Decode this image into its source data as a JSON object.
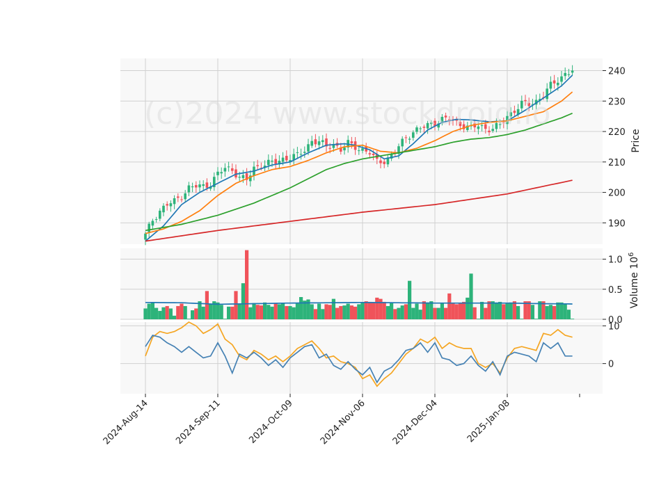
{
  "watermark": "(c)2024 www.stockdroid.io",
  "colors": {
    "up": "#2db37a",
    "down": "#f0535a",
    "ma_short": "#1f77b4",
    "ma_mid": "#ff7f0e",
    "ma_long": "#2ca02c",
    "ma_200": "#d62728",
    "osc_fast": "#4682b4",
    "osc_slow": "#f5a623",
    "grid": "#d0d0d0",
    "panel_bg": "#f8f8f8"
  },
  "chart_data": {
    "type": "candlestick",
    "x_tick_labels": [
      "2024-Aug-14",
      "2024-Sep-11",
      "2024-Oct-09",
      "2024-Nov-06",
      "2024-Dec-04",
      "2025-Jan-08"
    ],
    "x_tick_index": [
      0,
      20,
      40,
      60,
      80,
      100
    ],
    "n_bars": 119,
    "grid": true,
    "price_panel": {
      "ylabel": "Price",
      "yticks": [
        190,
        200,
        210,
        220,
        230,
        240
      ],
      "ylim": [
        183,
        244
      ],
      "close_anchors": [
        [
          0,
          186
        ],
        [
          2,
          191
        ],
        [
          4,
          194
        ],
        [
          6,
          196
        ],
        [
          8,
          197
        ],
        [
          10,
          199
        ],
        [
          12,
          201.5
        ],
        [
          14,
          202
        ],
        [
          16,
          202
        ],
        [
          18,
          203
        ],
        [
          20,
          206
        ],
        [
          22,
          208
        ],
        [
          24,
          207.5
        ],
        [
          26,
          205
        ],
        [
          28,
          204
        ],
        [
          30,
          208
        ],
        [
          32,
          209
        ],
        [
          34,
          209.5
        ],
        [
          36,
          210
        ],
        [
          38,
          211
        ],
        [
          40,
          211.5
        ],
        [
          42,
          212
        ],
        [
          44,
          214
        ],
        [
          46,
          217
        ],
        [
          48,
          216.5
        ],
        [
          50,
          215
        ],
        [
          52,
          216
        ],
        [
          54,
          214
        ],
        [
          56,
          216
        ],
        [
          58,
          215
        ],
        [
          60,
          214
        ],
        [
          62,
          213
        ],
        [
          64,
          210
        ],
        [
          66,
          210.5
        ],
        [
          68,
          212
        ],
        [
          70,
          215
        ],
        [
          72,
          218
        ],
        [
          74,
          220
        ],
        [
          76,
          221
        ],
        [
          78,
          222
        ],
        [
          80,
          223
        ],
        [
          82,
          224
        ],
        [
          84,
          224
        ],
        [
          86,
          223
        ],
        [
          88,
          222
        ],
        [
          90,
          221
        ],
        [
          92,
          222
        ],
        [
          94,
          221
        ],
        [
          96,
          221
        ],
        [
          98,
          222
        ],
        [
          100,
          225
        ],
        [
          102,
          227
        ],
        [
          104,
          229
        ],
        [
          106,
          229
        ],
        [
          108,
          230
        ],
        [
          110,
          232
        ],
        [
          112,
          235
        ],
        [
          114,
          237
        ],
        [
          116,
          239
        ],
        [
          118,
          240
        ]
      ],
      "ma_series": [
        {
          "key": "ma_short",
          "anchors": [
            [
              0,
              184
            ],
            [
              5,
              189
            ],
            [
              10,
              196
            ],
            [
              15,
              200
            ],
            [
              20,
              203
            ],
            [
              25,
              206
            ],
            [
              30,
              207
            ],
            [
              35,
              209
            ],
            [
              40,
              210
            ],
            [
              45,
              213
            ],
            [
              50,
              215.5
            ],
            [
              55,
              216
            ],
            [
              58,
              215.5
            ],
            [
              62,
              214
            ],
            [
              66,
              211
            ],
            [
              70,
              212
            ],
            [
              74,
              216
            ],
            [
              78,
              220.5
            ],
            [
              82,
              223
            ],
            [
              86,
              224
            ],
            [
              90,
              223.8
            ],
            [
              95,
              223.2
            ],
            [
              100,
              223.5
            ],
            [
              105,
              227
            ],
            [
              110,
              231
            ],
            [
              115,
              235
            ],
            [
              118,
              238.5
            ]
          ]
        },
        {
          "key": "ma_mid",
          "anchors": [
            [
              0,
              186.5
            ],
            [
              5,
              188
            ],
            [
              10,
              190.5
            ],
            [
              15,
              194
            ],
            [
              20,
              199
            ],
            [
              25,
              203
            ],
            [
              30,
              205.5
            ],
            [
              35,
              207.5
            ],
            [
              40,
              208.5
            ],
            [
              45,
              210.5
            ],
            [
              50,
              213
            ],
            [
              55,
              215
            ],
            [
              60,
              215.5
            ],
            [
              65,
              213.5
            ],
            [
              70,
              213
            ],
            [
              75,
              214.5
            ],
            [
              80,
              217
            ],
            [
              85,
              220
            ],
            [
              90,
              222
            ],
            [
              95,
              223
            ],
            [
              100,
              223.5
            ],
            [
              105,
              225
            ],
            [
              110,
              226.5
            ],
            [
              115,
              230
            ],
            [
              118,
              233
            ]
          ]
        },
        {
          "key": "ma_long",
          "anchors": [
            [
              0,
              187.5
            ],
            [
              10,
              189.5
            ],
            [
              20,
              192.5
            ],
            [
              30,
              196.5
            ],
            [
              40,
              201.5
            ],
            [
              45,
              204.5
            ],
            [
              50,
              207.5
            ],
            [
              55,
              209.5
            ],
            [
              60,
              211
            ],
            [
              65,
              212
            ],
            [
              70,
              213
            ],
            [
              75,
              214
            ],
            [
              80,
              215
            ],
            [
              85,
              216.5
            ],
            [
              90,
              217.5
            ],
            [
              95,
              218
            ],
            [
              100,
              219
            ],
            [
              105,
              220.5
            ],
            [
              110,
              222.5
            ],
            [
              115,
              224.5
            ],
            [
              118,
              226
            ]
          ]
        },
        {
          "key": "ma_200",
          "anchors": [
            [
              0,
              184
            ],
            [
              20,
              187.5
            ],
            [
              40,
              190.5
            ],
            [
              60,
              193.5
            ],
            [
              80,
              196
            ],
            [
              100,
              199.5
            ],
            [
              118,
              204
            ]
          ]
        }
      ]
    },
    "volume_panel": {
      "ylabel": "Volume",
      "ylabel_exponent": "10",
      "ylabel_power": "6",
      "yticks": [
        0.0,
        0.5,
        1.0
      ],
      "ytick_labels": [
        "0.0",
        "0.5",
        "1.0"
      ],
      "ylim": [
        0,
        1.18
      ],
      "values_1e6": [
        0.18,
        0.26,
        0.28,
        0.19,
        0.14,
        0.2,
        0.22,
        0.18,
        0.06,
        0.22,
        0.26,
        0.22,
        0.01,
        0.15,
        0.18,
        0.3,
        0.21,
        0.47,
        0.26,
        0.3,
        0.28,
        0.24,
        0.01,
        0.21,
        0.21,
        0.47,
        0.25,
        0.6,
        1.15,
        0.2,
        0.27,
        0.24,
        0.23,
        0.28,
        0.24,
        0.21,
        0.26,
        0.25,
        0.27,
        0.22,
        0.22,
        0.2,
        0.26,
        0.37,
        0.31,
        0.33,
        0.25,
        0.17,
        0.26,
        0.17,
        0.25,
        0.24,
        0.34,
        0.19,
        0.22,
        0.23,
        0.26,
        0.23,
        0.21,
        0.25,
        0.28,
        0.3,
        0.29,
        0.28,
        0.36,
        0.34,
        0.29,
        0.22,
        0.27,
        0.17,
        0.19,
        0.23,
        0.25,
        0.64,
        0.19,
        0.26,
        0.16,
        0.3,
        0.28,
        0.3,
        0.19,
        0.19,
        0.26,
        0.19,
        0.43,
        0.26,
        0.25,
        0.26,
        0.29,
        0.36,
        0.76,
        0.2,
        0.01,
        0.29,
        0.19,
        0.3,
        0.3,
        0.28,
        0.29,
        0.25,
        0.26,
        0.28,
        0.3,
        0.22,
        0.01,
        0.3,
        0.3,
        0.24,
        0.01,
        0.3,
        0.3,
        0.22,
        0.24,
        0.22,
        0.28,
        0.28,
        0.25,
        0.16,
        0.01
      ],
      "avg_anchors": [
        [
          0,
          0.28
        ],
        [
          10,
          0.275
        ],
        [
          20,
          0.25
        ],
        [
          30,
          0.26
        ],
        [
          40,
          0.27
        ],
        [
          50,
          0.275
        ],
        [
          60,
          0.28
        ],
        [
          70,
          0.275
        ],
        [
          80,
          0.27
        ],
        [
          90,
          0.27
        ],
        [
          100,
          0.27
        ],
        [
          110,
          0.26
        ],
        [
          118,
          0.255
        ]
      ]
    },
    "oscillator_panel": {
      "yticks": [
        0,
        10
      ],
      "ytick_labels": [
        "0",
        "10"
      ],
      "ylim": [
        -8,
        11
      ],
      "fast_anchors": [
        [
          0,
          4.5
        ],
        [
          2,
          7.5
        ],
        [
          4,
          7
        ],
        [
          6,
          5.5
        ],
        [
          8,
          4.5
        ],
        [
          10,
          3
        ],
        [
          12,
          4.5
        ],
        [
          14,
          3
        ],
        [
          16,
          1.5
        ],
        [
          18,
          2
        ],
        [
          20,
          5.5
        ],
        [
          22,
          2
        ],
        [
          24,
          -2.5
        ],
        [
          26,
          2.5
        ],
        [
          28,
          1.5
        ],
        [
          30,
          3
        ],
        [
          32,
          1.5
        ],
        [
          34,
          -0.5
        ],
        [
          36,
          1
        ],
        [
          38,
          -1
        ],
        [
          40,
          1.5
        ],
        [
          42,
          3
        ],
        [
          44,
          4.5
        ],
        [
          46,
          5
        ],
        [
          48,
          1.5
        ],
        [
          50,
          2.5
        ],
        [
          52,
          -0.5
        ],
        [
          54,
          -1.5
        ],
        [
          56,
          0.5
        ],
        [
          58,
          -1.5
        ],
        [
          60,
          -3
        ],
        [
          62,
          -1
        ],
        [
          64,
          -5
        ],
        [
          66,
          -2
        ],
        [
          68,
          -1
        ],
        [
          70,
          1
        ],
        [
          72,
          3.5
        ],
        [
          74,
          4
        ],
        [
          76,
          5.5
        ],
        [
          78,
          3
        ],
        [
          80,
          5.5
        ],
        [
          82,
          1.5
        ],
        [
          84,
          1
        ],
        [
          86,
          -0.5
        ],
        [
          88,
          0
        ],
        [
          90,
          2
        ],
        [
          92,
          -0.5
        ],
        [
          94,
          -2
        ],
        [
          96,
          0.5
        ],
        [
          98,
          -3
        ],
        [
          100,
          2
        ],
        [
          102,
          3
        ],
        [
          104,
          2.5
        ],
        [
          106,
          2
        ],
        [
          108,
          0.5
        ],
        [
          110,
          5.5
        ],
        [
          112,
          4
        ],
        [
          114,
          5.5
        ],
        [
          116,
          2
        ],
        [
          118,
          2
        ]
      ],
      "slow_anchors": [
        [
          0,
          2
        ],
        [
          2,
          7
        ],
        [
          4,
          8.5
        ],
        [
          6,
          8
        ],
        [
          8,
          8.5
        ],
        [
          10,
          9.5
        ],
        [
          12,
          11
        ],
        [
          14,
          10
        ],
        [
          16,
          8
        ],
        [
          18,
          9
        ],
        [
          20,
          10.5
        ],
        [
          22,
          6.5
        ],
        [
          24,
          5
        ],
        [
          26,
          2
        ],
        [
          28,
          1
        ],
        [
          30,
          3.5
        ],
        [
          32,
          2.5
        ],
        [
          34,
          1
        ],
        [
          36,
          2
        ],
        [
          38,
          0.5
        ],
        [
          40,
          2
        ],
        [
          42,
          4
        ],
        [
          44,
          5
        ],
        [
          46,
          6
        ],
        [
          48,
          4
        ],
        [
          50,
          1.5
        ],
        [
          52,
          2
        ],
        [
          54,
          0.5
        ],
        [
          56,
          0
        ],
        [
          58,
          -1
        ],
        [
          60,
          -4
        ],
        [
          62,
          -3
        ],
        [
          64,
          -6
        ],
        [
          66,
          -4
        ],
        [
          68,
          -2.5
        ],
        [
          70,
          0
        ],
        [
          72,
          2.5
        ],
        [
          74,
          4
        ],
        [
          76,
          6.5
        ],
        [
          78,
          5.5
        ],
        [
          80,
          7
        ],
        [
          82,
          4
        ],
        [
          84,
          5.5
        ],
        [
          86,
          4.5
        ],
        [
          88,
          4
        ],
        [
          90,
          4
        ],
        [
          92,
          0
        ],
        [
          94,
          -1
        ],
        [
          96,
          0
        ],
        [
          98,
          -2.5
        ],
        [
          100,
          1.5
        ],
        [
          102,
          4
        ],
        [
          104,
          4.5
        ],
        [
          106,
          4
        ],
        [
          108,
          3.5
        ],
        [
          110,
          8
        ],
        [
          112,
          7.5
        ],
        [
          114,
          9
        ],
        [
          116,
          7.5
        ],
        [
          118,
          7
        ]
      ]
    }
  }
}
